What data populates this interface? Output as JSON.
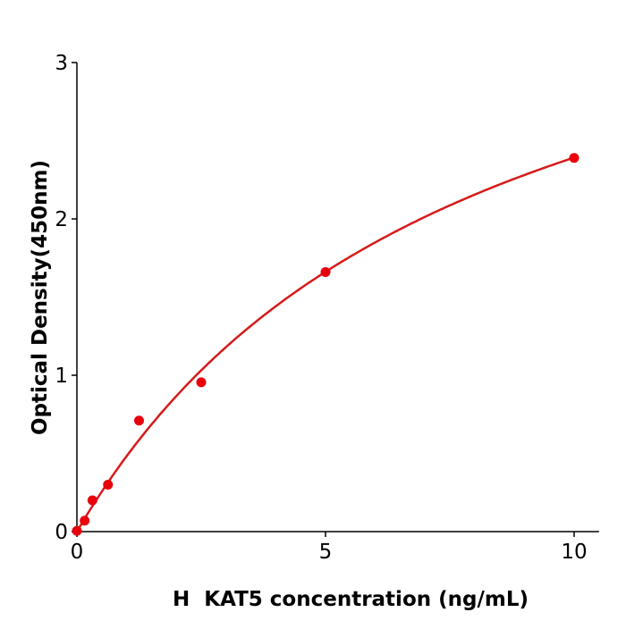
{
  "chart_data": {
    "type": "scatter",
    "title": "",
    "xlabel": "H  KAT5 concentration (ng/mL)",
    "ylabel": "Optical Density(450nm)",
    "xlim": [
      0,
      10.5
    ],
    "ylim": [
      0,
      3
    ],
    "xticks": [
      "0",
      "5",
      "10"
    ],
    "yticks": [
      "0",
      "1",
      "2",
      "3"
    ],
    "grid": false,
    "color": "#e8000b",
    "curve_color": "#d61a1a",
    "points": [
      {
        "x": 0,
        "y": 0.005
      },
      {
        "x": 0.156,
        "y": 0.07
      },
      {
        "x": 0.3125,
        "y": 0.2
      },
      {
        "x": 0.625,
        "y": 0.3
      },
      {
        "x": 1.25,
        "y": 0.71
      },
      {
        "x": 2.5,
        "y": 0.955
      },
      {
        "x": 5,
        "y": 1.66
      },
      {
        "x": 10,
        "y": 2.39
      }
    ],
    "fit_curve": true
  }
}
